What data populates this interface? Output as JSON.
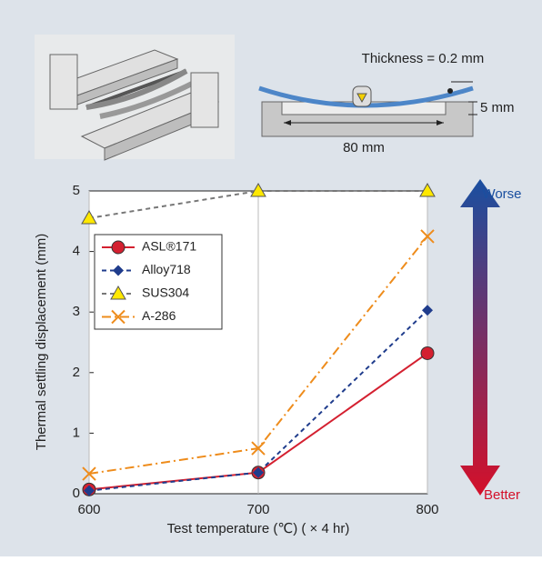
{
  "diagram": {
    "thickness": "Thickness = 0.2 mm",
    "depth": "5 mm",
    "span": "80 mm"
  },
  "chart_data": {
    "type": "line",
    "y_label": "Thermal settling displacement (mm)",
    "x_label": "Test temperature (℃) ( × 4 hr)",
    "top_label": "Worse",
    "bottom_label": "Better",
    "x": [
      600,
      700,
      800
    ],
    "xlim": [
      600,
      800
    ],
    "xticks": [
      600,
      700,
      800
    ],
    "ylim": [
      0,
      5
    ],
    "yticks": [
      0,
      1,
      2,
      3,
      4,
      5
    ],
    "grid": true,
    "series": [
      {
        "name": "ASL®171",
        "color": "#d42030",
        "dash": "none",
        "marker": "circle",
        "values": [
          0.07,
          0.35,
          2.32
        ]
      },
      {
        "name": "Alloy718",
        "color": "#1f3c8c",
        "dash": "5,4",
        "marker": "diamond",
        "values": [
          0.05,
          0.35,
          3.03
        ]
      },
      {
        "name": "SUS304",
        "color": "#777777",
        "dash": "5,4",
        "marker": "triangle",
        "values": [
          4.55,
          5.0,
          5.0
        ]
      },
      {
        "name": "A-286",
        "color": "#ee8c1c",
        "dash": "10,4,2,4",
        "marker": "x",
        "values": [
          0.33,
          0.75,
          4.25
        ]
      }
    ]
  }
}
